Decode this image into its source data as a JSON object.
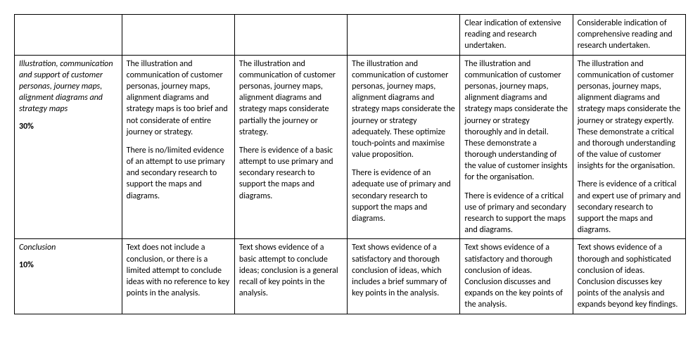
{
  "rows": [
    {
      "criteria_label": "",
      "criteria_weight": "",
      "cells": [
        "",
        "",
        "",
        "Clear indication of extensive reading and research undertaken.",
        "Considerable indication of comprehensive reading and research undertaken."
      ]
    },
    {
      "criteria_label": "Illustration, communication and support of customer personas, journey maps, alignment diagrams and strategy maps",
      "criteria_weight": "30%",
      "cells": [
        "The illustration and communication of customer personas, journey maps, alignment diagrams and strategy maps is too brief and not considerate of entire journey or strategy.\n\nThere is no/limited evidence of an attempt to use primary and secondary research to support the maps and diagrams.",
        "The illustration and communication of customer personas, journey maps, alignment diagrams and strategy maps considerate partially the journey or strategy.\n\nThere is evidence of a basic attempt to use primary and secondary research to support the maps and diagrams.",
        "The illustration and communication of customer personas, journey maps, alignment diagrams and strategy maps considerate the journey or strategy adequately. These optimize touch-points and maximise value proposition.\n\nThere is evidence of an adequate use of primary and secondary research to support the maps and diagrams.",
        "The illustration and communication of customer personas, journey maps, alignment diagrams and strategy maps considerate the journey or strategy thoroughly and in detail. These demonstrate a thorough understanding of the value of customer insights for the organisation.\n\nThere is evidence of a critical use of primary and secondary research to support the maps and diagrams.",
        "The illustration and communication of customer personas, journey maps, alignment diagrams and strategy maps considerate the journey or strategy expertly. These demonstrate a critical and thorough understanding of the value of customer insights for the organisation.\n\nThere is evidence of a critical and expert use of primary and secondary research to support the maps and diagrams."
      ]
    },
    {
      "criteria_label": "Conclusion",
      "criteria_weight": "10%",
      "cells": [
        "Text does not include a conclusion, or there is a limited attempt to conclude ideas with no reference to key points in the analysis.",
        "Text shows evidence of a basic attempt to conclude ideas; conclusion is a general recall of key points in the analysis.",
        "Text shows evidence of a satisfactory and thorough conclusion of ideas, which includes a brief summary of key points in the analysis.",
        "Text shows evidence of a satisfactory and thorough conclusion of ideas. Conclusion discusses and expands on the key points of the analysis.",
        "Text shows evidence of a thorough and sophisticated conclusion of ideas. Conclusion discusses key points of the analysis and expands beyond key findings."
      ]
    }
  ]
}
